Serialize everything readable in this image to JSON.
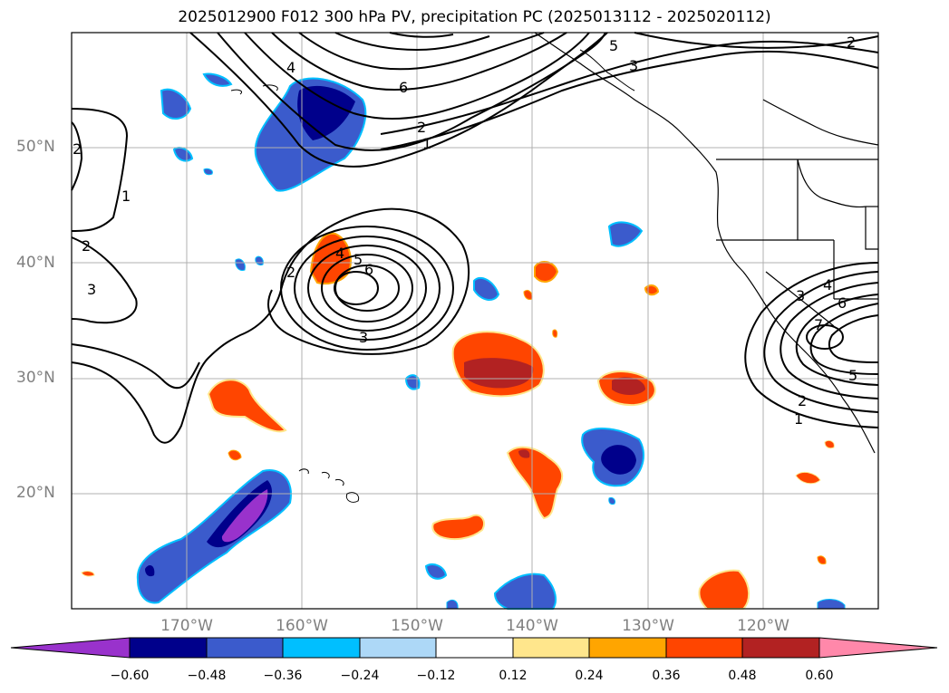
{
  "title": "2025012900 F012 300 hPa PV, precipitation PC (2025013112 - 2025020112)",
  "map": {
    "lon_range": [
      -180,
      -110
    ],
    "lat_range": [
      10,
      60
    ],
    "lat_labels": [
      "20°N",
      "30°N",
      "40°N",
      "50°N"
    ],
    "lon_labels": [
      "170°W",
      "160°W",
      "150°W",
      "140°W",
      "130°W",
      "120°W"
    ],
    "gridlines": true
  },
  "contour_labels": [
    "2",
    "4",
    "6",
    "5",
    "3",
    "2",
    "1",
    "2",
    "1",
    "2",
    "3",
    "2",
    "4",
    "5",
    "6",
    "3",
    "3",
    "4",
    "6",
    "7",
    "5",
    "2",
    "1"
  ],
  "colorbar": {
    "ticks": [
      "−0.60",
      "−0.48",
      "−0.36",
      "−0.24",
      "−0.12",
      "0.12",
      "0.24",
      "0.36",
      "0.48",
      "0.60"
    ],
    "colors": [
      "#9932cc",
      "#00008b",
      "#3b5bcc",
      "#00bfff",
      "#add8f7",
      "#ffffff",
      "#ffe68c",
      "#ffa500",
      "#ff4500",
      "#b22222",
      "#ff88aa"
    ],
    "extend": "both"
  }
}
